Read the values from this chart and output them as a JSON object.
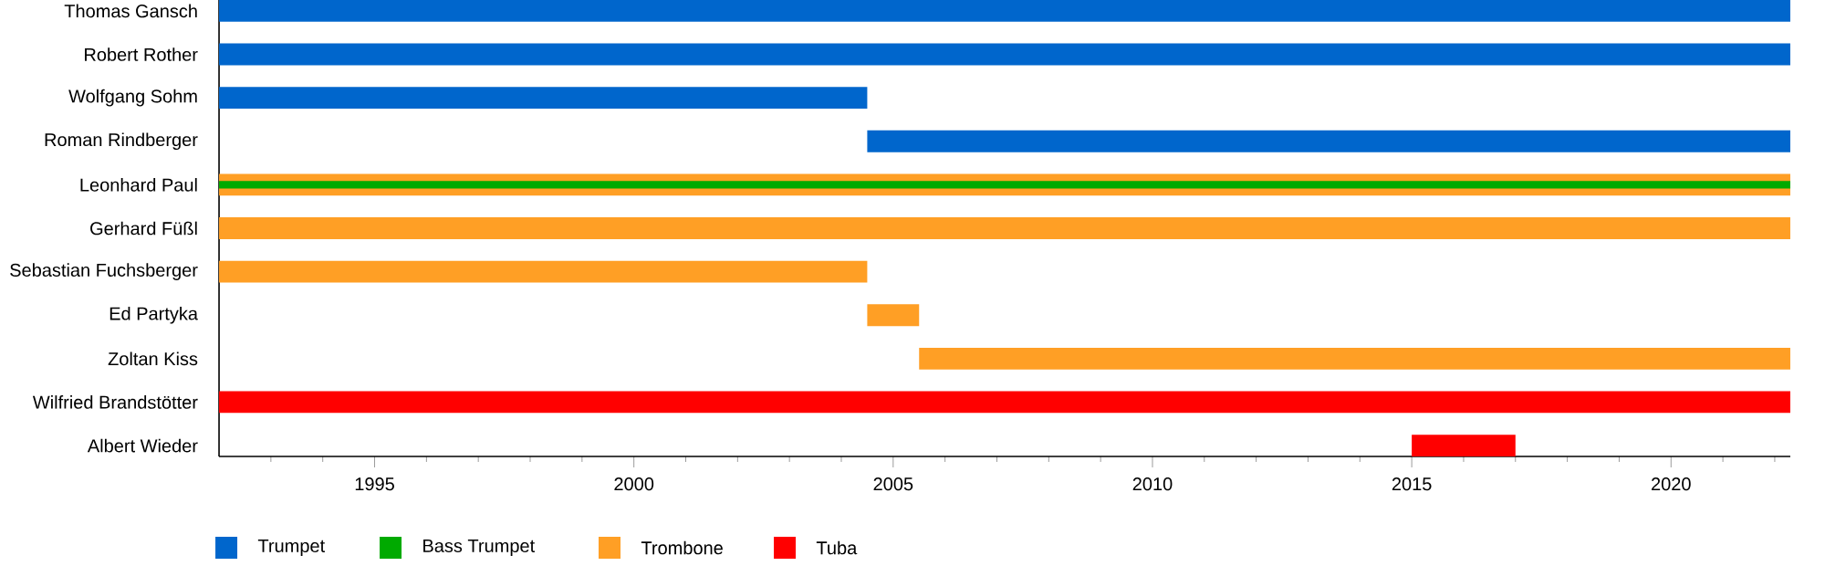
{
  "chart_data": {
    "type": "bar",
    "orientation": "horizontal",
    "categories": [
      "Thomas Gansch",
      "Robert Rother",
      "Wolfgang Sohm",
      "Roman Rindberger",
      "Leonhard Paul",
      "Gerhard Füßl",
      "Sebastian Fuchsberger",
      "Ed Partyka",
      "Zoltan Kiss",
      "Wilfried Brandstötter",
      "Albert Wieder"
    ],
    "series": [
      {
        "name": "Trumpet",
        "color": "#0066cc",
        "base": [
          1992,
          1992,
          1992,
          2004.5,
          null,
          null,
          null,
          null,
          null,
          null,
          null
        ],
        "values": [
          30.3,
          30.3,
          12.5,
          17.8,
          null,
          null,
          null,
          null,
          null,
          null,
          null
        ]
      },
      {
        "name": "Bass Trumpet",
        "color": "#00aa00",
        "base": [
          null,
          null,
          null,
          null,
          1992,
          null,
          null,
          null,
          null,
          null,
          null
        ],
        "values": [
          null,
          null,
          null,
          null,
          30.3,
          null,
          null,
          null,
          null,
          null,
          null
        ]
      },
      {
        "name": "Trombone",
        "color": "#ff9f25",
        "base": [
          null,
          null,
          null,
          null,
          1992,
          1992,
          1992,
          2004.5,
          2005.5,
          null,
          null
        ],
        "values": [
          null,
          null,
          null,
          null,
          30.3,
          30.3,
          12.5,
          1,
          16.8,
          null,
          null
        ]
      },
      {
        "name": "Tuba",
        "color": "#ff0000",
        "base": [
          null,
          null,
          null,
          null,
          null,
          null,
          null,
          null,
          null,
          1992,
          2015
        ],
        "values": [
          null,
          null,
          null,
          null,
          null,
          null,
          null,
          null,
          null,
          30.3,
          2
        ]
      }
    ],
    "xlim": [
      1992,
      2022.3
    ],
    "xticks": [
      {
        "value": 1993,
        "label": null
      },
      {
        "value": 1994,
        "label": null
      },
      1995,
      {
        "value": 1996,
        "label": null
      },
      {
        "value": 1997,
        "label": null
      },
      {
        "value": 1998,
        "label": null
      },
      {
        "value": 1999,
        "label": null
      },
      2000,
      {
        "value": 2001,
        "label": null
      },
      {
        "value": 2002,
        "label": null
      },
      {
        "value": 2003,
        "label": null
      },
      {
        "value": 2004,
        "label": null
      },
      2005,
      {
        "value": 2006,
        "label": null
      },
      {
        "value": 2007,
        "label": null
      },
      {
        "value": 2008,
        "label": null
      },
      {
        "value": 2009,
        "label": null
      },
      2010,
      {
        "value": 2011,
        "label": null
      },
      {
        "value": 2012,
        "label": null
      },
      {
        "value": 2013,
        "label": null
      },
      {
        "value": 2014,
        "label": null
      },
      2015,
      {
        "value": 2016,
        "label": null
      },
      {
        "value": 2017,
        "label": null
      },
      {
        "value": 2018,
        "label": null
      },
      {
        "value": 2019,
        "label": null
      },
      2020,
      {
        "value": 2021,
        "label": null
      },
      {
        "value": 2022,
        "label": null
      }
    ],
    "legend": "bottom"
  }
}
